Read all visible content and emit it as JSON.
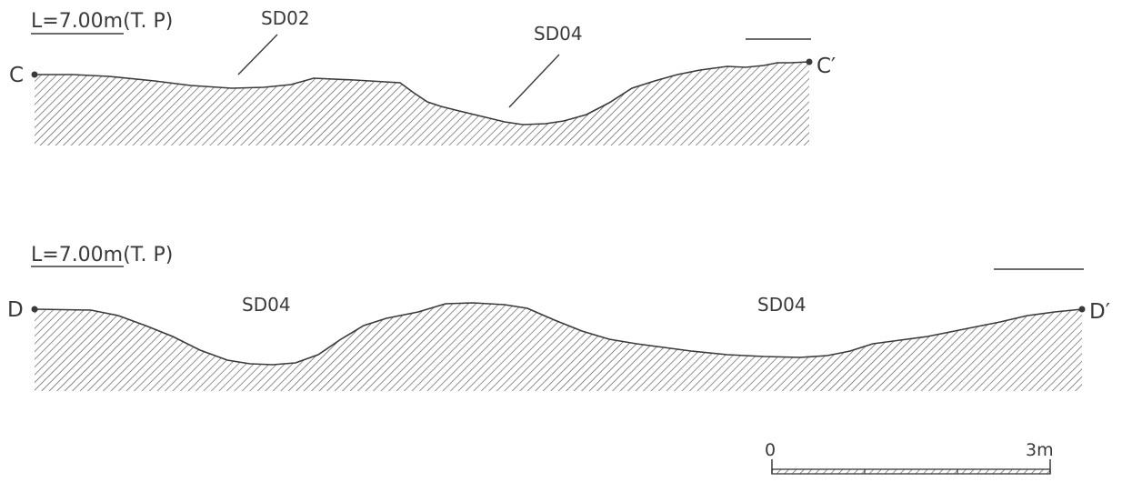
{
  "sections": [
    {
      "id": "C",
      "datum_label": "L=7.00m(T. P)",
      "start_label": "C",
      "end_label": "C′",
      "features": [
        {
          "label": "SD02"
        },
        {
          "label": "SD04"
        }
      ]
    },
    {
      "id": "D",
      "datum_label": "L=7.00m(T. P)",
      "start_label": "D",
      "end_label": "D′",
      "features": [
        {
          "label": "SD04"
        },
        {
          "label": "SD04"
        }
      ]
    }
  ],
  "scale_bar": {
    "start_label": "0",
    "end_label": "3m"
  },
  "colors": {
    "line": "#3a3a3a",
    "hatch": "#555555",
    "background": "#ffffff"
  }
}
